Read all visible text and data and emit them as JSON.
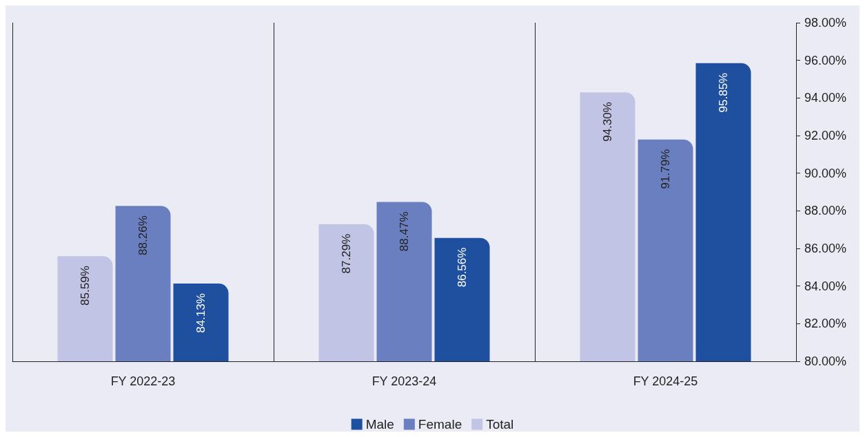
{
  "chart_data": {
    "type": "bar",
    "categories": [
      "FY 2022-23",
      "FY 2023-24",
      "FY 2024-25"
    ],
    "series": [
      {
        "name": "Male",
        "color": "#1f4f9f",
        "values": [
          84.13,
          86.56,
          95.85
        ],
        "value_labels": [
          "84.13%",
          "86.56%",
          "95.85%"
        ]
      },
      {
        "name": "Female",
        "color": "#6a7fc0",
        "values": [
          88.26,
          88.47,
          91.79
        ],
        "value_labels": [
          "88.26%",
          "88.47%",
          "91.79%"
        ]
      },
      {
        "name": "Total",
        "color": "#c1c4e4",
        "values": [
          85.59,
          87.29,
          94.3
        ],
        "value_labels": [
          "85.59%",
          "87.29%",
          "94.30%"
        ]
      }
    ],
    "ylim": [
      80,
      98
    ],
    "yticks": [
      {
        "value": 80,
        "label": "80.00%"
      },
      {
        "value": 82,
        "label": "82.00%"
      },
      {
        "value": 84,
        "label": "84.00%"
      },
      {
        "value": 86,
        "label": "86.00%"
      },
      {
        "value": 88,
        "label": "88.00%"
      },
      {
        "value": 90,
        "label": "90.00%"
      },
      {
        "value": 92,
        "label": "92.00%"
      },
      {
        "value": 94,
        "label": "94.00%"
      },
      {
        "value": 96,
        "label": "96.00%"
      },
      {
        "value": 98,
        "label": "98.00%"
      }
    ],
    "grid": "x",
    "legend": "bottom"
  }
}
